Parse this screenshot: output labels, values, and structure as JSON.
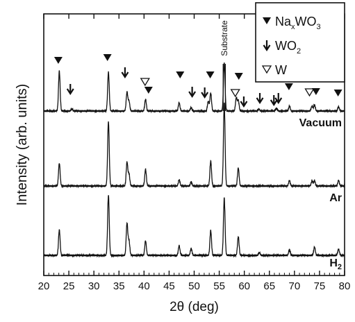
{
  "chart_data": {
    "type": "line",
    "title": "",
    "xlabel": "2θ (deg)",
    "ylabel": "Intensity (arb. units)",
    "xlim": [
      20,
      80
    ],
    "xticks": [
      20,
      25,
      30,
      35,
      40,
      45,
      50,
      55,
      60,
      65,
      70,
      75,
      80
    ],
    "y_tick_labels": false,
    "grid": false,
    "legend_position": "top-right",
    "substrate_label": "Substrate",
    "substrate_two_theta": 56.0,
    "legend": [
      {
        "marker": "filled-triangle-down",
        "label": "NaxWO3",
        "main": "Na",
        "sub": "x",
        "rest": "WO",
        "sub2": "3"
      },
      {
        "marker": "arrow-down",
        "label": "WO2",
        "main": "WO",
        "sub": "2"
      },
      {
        "marker": "open-triangle-down",
        "label": "W",
        "main": "W",
        "sub": ""
      }
    ],
    "series": [
      {
        "name": "Vacuum",
        "label_main": "Vacuum",
        "label_sub": "",
        "baseline": 0.0,
        "peaks": [
          {
            "x": 23.1,
            "h": 58
          },
          {
            "x": 25.6,
            "h": 3
          },
          {
            "x": 32.9,
            "h": 56
          },
          {
            "x": 36.6,
            "h": 27
          },
          {
            "x": 37.0,
            "h": 14
          },
          {
            "x": 40.3,
            "h": 17
          },
          {
            "x": 47.0,
            "h": 12
          },
          {
            "x": 49.4,
            "h": 5
          },
          {
            "x": 52.8,
            "h": 14
          },
          {
            "x": 53.3,
            "h": 26
          },
          {
            "x": 56.0,
            "h": 70
          },
          {
            "x": 58.4,
            "h": 19
          },
          {
            "x": 58.8,
            "h": 15
          },
          {
            "x": 62.9,
            "h": 3
          },
          {
            "x": 66.4,
            "h": 4
          },
          {
            "x": 69.0,
            "h": 7
          },
          {
            "x": 73.5,
            "h": 7
          },
          {
            "x": 74.0,
            "h": 9
          },
          {
            "x": 78.8,
            "h": 6
          }
        ]
      },
      {
        "name": "Ar",
        "label_main": "Ar",
        "label_sub": "",
        "baseline": 0.0,
        "peaks": [
          {
            "x": 23.1,
            "h": 33
          },
          {
            "x": 32.9,
            "h": 93
          },
          {
            "x": 36.6,
            "h": 34
          },
          {
            "x": 37.0,
            "h": 17
          },
          {
            "x": 40.3,
            "h": 24
          },
          {
            "x": 47.0,
            "h": 9
          },
          {
            "x": 49.4,
            "h": 6
          },
          {
            "x": 53.3,
            "h": 36
          },
          {
            "x": 56.0,
            "h": 120
          },
          {
            "x": 58.8,
            "h": 26
          },
          {
            "x": 69.0,
            "h": 8
          },
          {
            "x": 73.5,
            "h": 7
          },
          {
            "x": 74.0,
            "h": 8
          },
          {
            "x": 78.8,
            "h": 8
          }
        ]
      },
      {
        "name": "H2",
        "label_main": "H",
        "label_sub": "2",
        "baseline": 0.0,
        "peaks": [
          {
            "x": 23.1,
            "h": 37
          },
          {
            "x": 32.9,
            "h": 87
          },
          {
            "x": 36.6,
            "h": 46
          },
          {
            "x": 37.0,
            "h": 21
          },
          {
            "x": 40.3,
            "h": 21
          },
          {
            "x": 47.0,
            "h": 14
          },
          {
            "x": 49.4,
            "h": 10
          },
          {
            "x": 53.3,
            "h": 36
          },
          {
            "x": 56.0,
            "h": 83
          },
          {
            "x": 58.8,
            "h": 27
          },
          {
            "x": 63.0,
            "h": 4
          },
          {
            "x": 69.0,
            "h": 8
          },
          {
            "x": 74.0,
            "h": 12
          },
          {
            "x": 78.8,
            "h": 9
          }
        ]
      }
    ],
    "phase_markers": [
      {
        "x": 22.9,
        "type": "filled-triangle-down"
      },
      {
        "x": 25.3,
        "type": "arrow-down"
      },
      {
        "x": 32.7,
        "type": "filled-triangle-down"
      },
      {
        "x": 36.2,
        "type": "arrow-down"
      },
      {
        "x": 40.2,
        "type": "open-triangle-down"
      },
      {
        "x": 40.9,
        "type": "filled-triangle-down"
      },
      {
        "x": 47.2,
        "type": "filled-triangle-down"
      },
      {
        "x": 49.6,
        "type": "arrow-down"
      },
      {
        "x": 52.1,
        "type": "arrow-down"
      },
      {
        "x": 53.2,
        "type": "filled-triangle-down"
      },
      {
        "x": 58.2,
        "type": "open-triangle-down"
      },
      {
        "x": 58.9,
        "type": "filled-triangle-down"
      },
      {
        "x": 59.9,
        "type": "arrow-down"
      },
      {
        "x": 63.1,
        "type": "arrow-down"
      },
      {
        "x": 65.9,
        "type": "arrow-down"
      },
      {
        "x": 66.8,
        "type": "arrow-down"
      },
      {
        "x": 68.9,
        "type": "filled-triangle-down"
      },
      {
        "x": 73.0,
        "type": "open-triangle-down"
      },
      {
        "x": 74.3,
        "type": "filled-triangle-down"
      },
      {
        "x": 78.7,
        "type": "filled-triangle-down"
      }
    ]
  }
}
